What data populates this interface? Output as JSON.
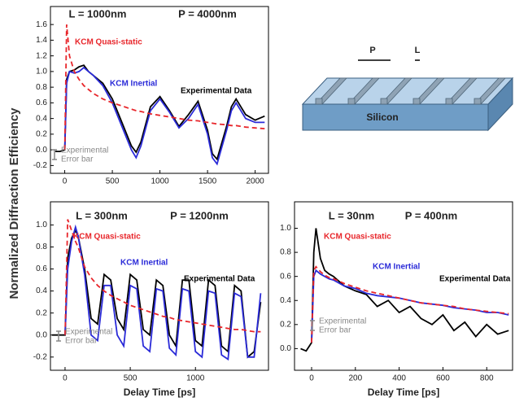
{
  "y_label": "Normalized Diffraction Efficiency",
  "diagram": {
    "period_label": "P",
    "line_label": "L",
    "substrate_label": "Silicon"
  },
  "chart_data": [
    {
      "type": "line",
      "annotations": [
        "L = 1000nm",
        "P = 4000nm"
      ],
      "error_bar_label": [
        "Experimental",
        "Error bar"
      ],
      "x": [
        -100,
        -50,
        0,
        20,
        50,
        100,
        150,
        200,
        250,
        300,
        400,
        500,
        600,
        700,
        750,
        800,
        900,
        1000,
        1100,
        1200,
        1300,
        1400,
        1500,
        1550,
        1600,
        1700,
        1750,
        1800,
        1900,
        2000,
        2100
      ],
      "series": [
        {
          "name": "Experimental Data",
          "color": "#000000",
          "values": [
            -0.02,
            -0.02,
            0.0,
            0.9,
            1.0,
            1.02,
            1.06,
            1.08,
            1.0,
            0.95,
            0.85,
            0.65,
            0.35,
            0.05,
            -0.03,
            0.1,
            0.55,
            0.68,
            0.5,
            0.3,
            0.45,
            0.62,
            0.25,
            -0.05,
            -0.12,
            0.3,
            0.55,
            0.65,
            0.45,
            0.38,
            0.43
          ]
        },
        {
          "name": "KCM Inertial",
          "color": "#2b2bd8",
          "values": [
            null,
            null,
            0.0,
            0.85,
            1.0,
            0.98,
            1.0,
            1.05,
            1.0,
            0.95,
            0.82,
            0.6,
            0.3,
            0.0,
            -0.1,
            0.05,
            0.5,
            0.65,
            0.48,
            0.28,
            0.4,
            0.58,
            0.2,
            -0.1,
            -0.18,
            0.25,
            0.5,
            0.6,
            0.4,
            0.35,
            0.35
          ]
        },
        {
          "name": "KCM Quasi-static",
          "color": "#e8262b",
          "dashed": true,
          "values": [
            null,
            null,
            0.0,
            1.6,
            1.2,
            1.0,
            0.9,
            0.82,
            0.77,
            0.72,
            0.65,
            0.6,
            0.56,
            0.52,
            0.5,
            0.49,
            0.46,
            0.44,
            0.42,
            0.4,
            0.38,
            0.37,
            0.35,
            0.34,
            0.33,
            0.32,
            0.31,
            0.31,
            0.29,
            0.28,
            0.27
          ]
        }
      ],
      "xlim": [
        -150,
        2140
      ],
      "ylim": [
        -0.3,
        1.83
      ],
      "xticks": [
        0,
        500,
        1000,
        1500,
        2000
      ],
      "yticks": [
        -0.2,
        {
          "value": 0,
          "label": "0.0"
        },
        0.2,
        0.4,
        0.6,
        0.8,
        {
          "value": 1,
          "label": "1.0"
        },
        1.2,
        1.4,
        1.6
      ]
    },
    {
      "type": "line",
      "annotations": [
        "L = 300nm",
        "P = 1200nm"
      ],
      "error_bar_label": [
        "Experimental",
        "Error bar"
      ],
      "xlabel": "Delay Time [ps]",
      "x": [
        -100,
        -50,
        0,
        20,
        50,
        80,
        100,
        150,
        200,
        250,
        300,
        350,
        400,
        450,
        500,
        550,
        600,
        650,
        700,
        750,
        800,
        850,
        900,
        950,
        1000,
        1050,
        1100,
        1150,
        1200,
        1250,
        1300,
        1350,
        1400,
        1450,
        1500
      ],
      "series": [
        {
          "name": "Experimental Data",
          "color": "#000000",
          "values": [
            0.0,
            0.0,
            0.0,
            0.7,
            0.88,
            0.95,
            0.9,
            0.6,
            0.15,
            0.1,
            0.55,
            0.5,
            0.15,
            0.05,
            0.55,
            0.5,
            0.05,
            0.0,
            0.5,
            0.45,
            0.0,
            -0.1,
            0.5,
            0.5,
            -0.05,
            -0.1,
            0.5,
            0.45,
            -0.1,
            -0.15,
            0.45,
            0.4,
            -0.2,
            -0.15,
            0.3
          ]
        },
        {
          "name": "KCM Inertial",
          "color": "#2b2bd8",
          "values": [
            null,
            null,
            0.0,
            0.6,
            0.85,
            0.98,
            0.9,
            0.55,
            0.0,
            -0.05,
            0.45,
            0.45,
            0.0,
            -0.1,
            0.45,
            0.42,
            -0.1,
            -0.15,
            0.42,
            0.4,
            -0.12,
            -0.18,
            0.42,
            0.4,
            -0.15,
            -0.2,
            0.4,
            0.38,
            -0.18,
            -0.22,
            0.38,
            0.35,
            -0.2,
            -0.2,
            0.38
          ]
        },
        {
          "name": "KCM Quasi-static",
          "color": "#e8262b",
          "dashed": true,
          "values": [
            null,
            null,
            0.0,
            1.05,
            0.95,
            0.85,
            0.8,
            0.62,
            0.52,
            0.45,
            0.4,
            0.36,
            0.33,
            0.3,
            0.27,
            0.25,
            0.23,
            0.21,
            0.19,
            0.17,
            0.16,
            0.14,
            0.13,
            0.12,
            0.11,
            0.1,
            0.09,
            0.08,
            0.07,
            0.06,
            0.05,
            0.05,
            0.04,
            0.03,
            0.03
          ]
        }
      ],
      "xlim": [
        -112,
        1560
      ],
      "ylim": [
        -0.32,
        1.21
      ],
      "xticks": [
        0,
        500,
        1000
      ],
      "yticks": [
        -0.2,
        {
          "value": 0,
          "label": "0.0"
        },
        0.2,
        0.4,
        0.6,
        0.8,
        {
          "value": 1,
          "label": "1.0"
        }
      ]
    },
    {
      "type": "line",
      "annotations": [
        "L = 30nm",
        "P = 400nm"
      ],
      "error_bar_label": [
        "Experimental",
        "Error bar"
      ],
      "xlabel": "Delay Time [ps]",
      "x": [
        -50,
        -25,
        0,
        10,
        20,
        40,
        60,
        80,
        100,
        150,
        200,
        250,
        300,
        350,
        400,
        450,
        500,
        550,
        600,
        650,
        700,
        750,
        800,
        850,
        900
      ],
      "series": [
        {
          "name": "Experimental Data",
          "color": "#000000",
          "values": [
            0.0,
            -0.02,
            0.05,
            0.8,
            1.0,
            0.75,
            0.65,
            0.62,
            0.6,
            0.52,
            0.48,
            0.45,
            0.35,
            0.4,
            0.3,
            0.35,
            0.25,
            0.2,
            0.28,
            0.15,
            0.22,
            0.1,
            0.2,
            0.12,
            0.15
          ]
        },
        {
          "name": "KCM Inertial",
          "color": "#2b2bd8",
          "values": [
            null,
            null,
            0.05,
            0.6,
            0.65,
            0.62,
            0.6,
            0.58,
            0.57,
            0.52,
            0.5,
            0.46,
            0.44,
            0.43,
            0.42,
            0.4,
            0.38,
            0.37,
            0.36,
            0.34,
            0.33,
            0.32,
            0.3,
            0.3,
            0.28
          ]
        },
        {
          "name": "KCM Quasi-static",
          "color": "#e8262b",
          "dashed": true,
          "values": [
            null,
            null,
            0.05,
            0.65,
            0.68,
            0.64,
            0.61,
            0.59,
            0.58,
            0.54,
            0.51,
            0.48,
            0.46,
            0.44,
            0.42,
            0.4,
            0.38,
            0.37,
            0.36,
            0.35,
            0.33,
            0.32,
            0.31,
            0.3,
            0.29
          ]
        }
      ],
      "xlim": [
        -78,
        918
      ],
      "ylim": [
        -0.18,
        1.22
      ],
      "xticks": [
        0,
        200,
        400,
        600,
        800
      ],
      "yticks": [
        {
          "value": 0,
          "label": "0.0"
        },
        0.2,
        0.4,
        0.6,
        0.8,
        {
          "value": 1,
          "label": "1.0"
        }
      ]
    }
  ]
}
